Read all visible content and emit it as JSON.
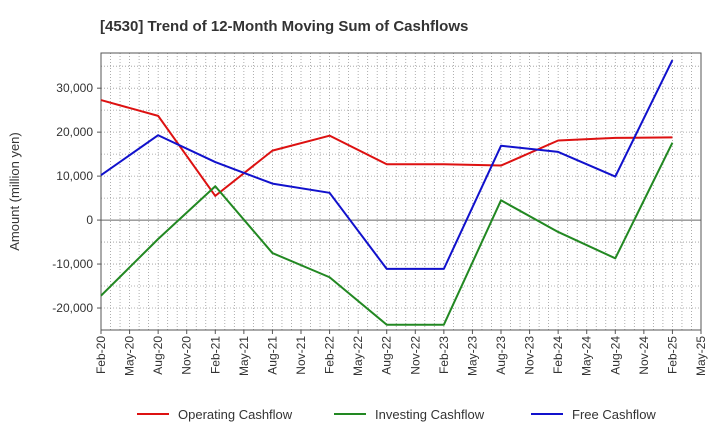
{
  "chart_data": {
    "type": "line",
    "title": "[4530]  Trend of 12-Month Moving Sum of Cashflows",
    "xlabel": "",
    "ylabel": "Amount (million yen)",
    "x_ticks": [
      "Feb-20",
      "May-20",
      "Aug-20",
      "Nov-20",
      "Feb-21",
      "May-21",
      "Aug-21",
      "Nov-21",
      "Feb-22",
      "May-22",
      "Aug-22",
      "Nov-22",
      "Feb-23",
      "May-23",
      "Aug-23",
      "Nov-23",
      "Feb-24",
      "May-24",
      "Aug-24",
      "Nov-24",
      "Feb-25",
      "May-25"
    ],
    "y_ticks": [
      "30,000",
      "20,000",
      "10,000",
      "0",
      "-10,000",
      "-20,000"
    ],
    "y_tick_values": [
      30000,
      20000,
      10000,
      0,
      -10000,
      -20000
    ],
    "ylim": [
      -25000,
      38000
    ],
    "grid": true,
    "legend_position": "bottom",
    "x": [
      "Feb-20",
      "Aug-20",
      "Feb-21",
      "Aug-21",
      "Feb-22",
      "Aug-22",
      "Feb-23",
      "Aug-23",
      "Feb-24",
      "Aug-24",
      "Feb-25"
    ],
    "series": [
      {
        "name": "Operating Cashflow",
        "color": "#dd1111",
        "values": [
          27300,
          23700,
          5500,
          15800,
          19200,
          12700,
          12700,
          12400,
          18100,
          18700,
          18800
        ]
      },
      {
        "name": "Investing Cashflow",
        "color": "#228822",
        "values": [
          -17200,
          -4300,
          7700,
          -7500,
          -13000,
          -23800,
          -23800,
          4500,
          -2700,
          -8700,
          17600
        ]
      },
      {
        "name": "Free Cashflow",
        "color": "#1111cc",
        "values": [
          10200,
          19300,
          13200,
          8300,
          6200,
          -11100,
          -11100,
          16900,
          15500,
          9900,
          36400
        ]
      }
    ]
  }
}
